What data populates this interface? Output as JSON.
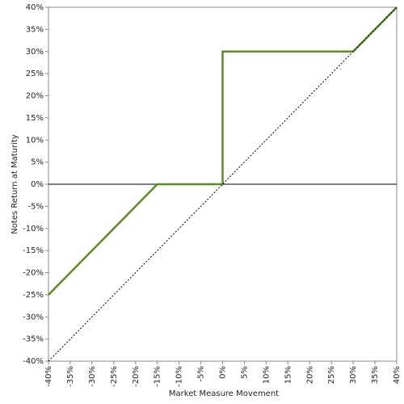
{
  "chart_data": {
    "type": "line",
    "x_label": "Market Measure Movement",
    "y_label": "Notes Return at Maturity",
    "xlim": [
      -40,
      40
    ],
    "ylim": [
      -40,
      40
    ],
    "xticks": [
      {
        "value": -40,
        "label": "-40%"
      },
      {
        "value": -35,
        "label": "-35%"
      },
      {
        "value": -30,
        "label": "-30%"
      },
      {
        "value": -25,
        "label": "-25%"
      },
      {
        "value": -20,
        "label": "-20%"
      },
      {
        "value": -15,
        "label": "-15%"
      },
      {
        "value": -10,
        "label": "-10%"
      },
      {
        "value": -5,
        "label": "-5%"
      },
      {
        "value": 0,
        "label": "0%"
      },
      {
        "value": 5,
        "label": "5%"
      },
      {
        "value": 10,
        "label": "10%"
      },
      {
        "value": 15,
        "label": "15%"
      },
      {
        "value": 20,
        "label": "20%"
      },
      {
        "value": 25,
        "label": "25%"
      },
      {
        "value": 30,
        "label": "30%"
      },
      {
        "value": 35,
        "label": "35%"
      },
      {
        "value": 40,
        "label": "40%"
      }
    ],
    "yticks": [
      {
        "value": -40,
        "label": "-40%"
      },
      {
        "value": -35,
        "label": "-35%"
      },
      {
        "value": -30,
        "label": "-30%"
      },
      {
        "value": -25,
        "label": "-25%"
      },
      {
        "value": -20,
        "label": "-20%"
      },
      {
        "value": -15,
        "label": "-15%"
      },
      {
        "value": -10,
        "label": "-10%"
      },
      {
        "value": -5,
        "label": "-5%"
      },
      {
        "value": 0,
        "label": "0%"
      },
      {
        "value": 5,
        "label": "5%"
      },
      {
        "value": 10,
        "label": "10%"
      },
      {
        "value": 15,
        "label": "15%"
      },
      {
        "value": 20,
        "label": "20%"
      },
      {
        "value": 25,
        "label": "25%"
      },
      {
        "value": 30,
        "label": "30%"
      },
      {
        "value": 35,
        "label": "35%"
      },
      {
        "value": 40,
        "label": "40%"
      }
    ],
    "zero_line": true,
    "series": [
      {
        "color": "#5b8c2a",
        "width": 2.5,
        "x": [
          -40,
          -15,
          0,
          0,
          30,
          40
        ],
        "values": [
          -25,
          0,
          0,
          30,
          30,
          40
        ]
      },
      {
        "color": "#000000",
        "width": 1,
        "dash": "dotted",
        "x": [
          -40,
          40
        ],
        "values": [
          -40,
          40
        ]
      }
    ]
  }
}
